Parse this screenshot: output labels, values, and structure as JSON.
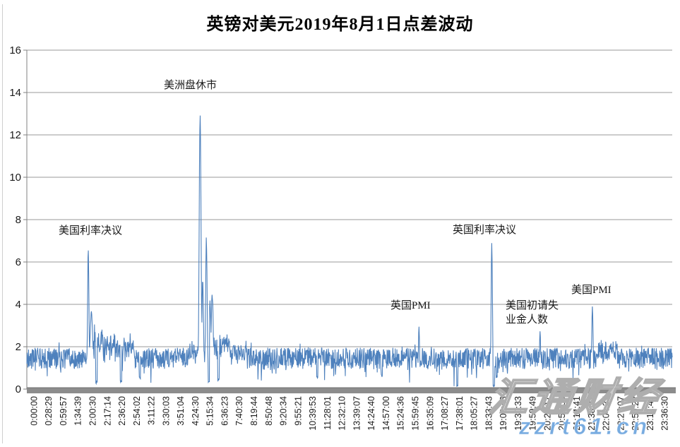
{
  "chart": {
    "title": "英镑对美元2019年8月1日点差波动"
  },
  "watermark": {
    "site_name": "汇通财经",
    "url": "zzrt61.cn",
    "url_color": "#77abe0"
  },
  "chart_data": {
    "type": "line",
    "title": "英镑对美元2019年8月1日点差波动",
    "xlabel": "",
    "ylabel": "",
    "ylim": [
      0,
      16
    ],
    "yticks": [
      0,
      2,
      4,
      6,
      8,
      10,
      12,
      14,
      16
    ],
    "grid": "horizontal",
    "legend": "none",
    "line_color": "#4E81BD",
    "gridline_color": "#999999",
    "axis_color": "#808080",
    "axis_bar_color": "#8c8c8c",
    "x_tick_labels": [
      "0:00:00",
      "0:28:29",
      "0:59:57",
      "1:34:39",
      "2:00:30",
      "2:17:14",
      "2:36:20",
      "2:54:02",
      "3:11:22",
      "3:30:03",
      "3:51:04",
      "4:24:30",
      "5:15:34",
      "6:36:23",
      "7:40:30",
      "8:19:44",
      "8:50:48",
      "9:20:34",
      "9:55:21",
      "10:39:53",
      "11:28:01",
      "12:32:10",
      "13:39:07",
      "14:24:40",
      "14:57:00",
      "15:24:36",
      "15:59:45",
      "16:35:09",
      "17:08:27",
      "17:38:01",
      "18:05:27",
      "18:33:43",
      "19:02:43",
      "19:30:33",
      "19:59:49",
      "20:24:17",
      "20:51:06",
      "21:14:41",
      "21:38:32",
      "22:04:37",
      "22:27:07",
      "22:50:22",
      "23:12:45",
      "23:36:30"
    ],
    "baseline": {
      "mean": 1.45,
      "noise_halfrange": 0.5,
      "dip_chance": 0.07,
      "dip_extra": 0.85,
      "up_chance": 0.04,
      "up_extra": 0.35
    },
    "spikes": [
      {
        "frac": 0.0952,
        "peak": 6.8,
        "sigma": 1.0
      },
      {
        "frac": 0.1,
        "peak": 3.7,
        "sigma": 2.2
      },
      {
        "frac": 0.2685,
        "peak": 13.6,
        "sigma": 1.3
      },
      {
        "frac": 0.2725,
        "peak": 5.2,
        "sigma": 1.2
      },
      {
        "frac": 0.2782,
        "peak": 7.4,
        "sigma": 1.1
      },
      {
        "frac": 0.2838,
        "peak": 4.35,
        "sigma": 1.4
      },
      {
        "frac": 0.2872,
        "peak": 4.6,
        "sigma": 1.6
      },
      {
        "frac": 0.6076,
        "peak": 3.1,
        "sigma": 0.9
      },
      {
        "frac": 0.7204,
        "peak": 6.9,
        "sigma": 1.0
      },
      {
        "frac": 0.7952,
        "peak": 2.9,
        "sigma": 0.9
      },
      {
        "frac": 0.8763,
        "peak": 4.0,
        "sigma": 1.0
      }
    ],
    "dips": [
      {
        "frac": 0.108,
        "value": 0.25
      },
      {
        "frac": 0.146,
        "value": 0.3
      },
      {
        "frac": 0.175,
        "value": 0.45
      },
      {
        "frac": 0.282,
        "value": 0.3
      },
      {
        "frac": 0.297,
        "value": 0.35
      },
      {
        "frac": 0.45,
        "value": 0.5
      },
      {
        "frac": 0.55,
        "value": 0.55
      },
      {
        "frac": 0.667,
        "value": 0.06
      },
      {
        "frac": 0.7235,
        "value": 0.08
      },
      {
        "frac": 0.728,
        "value": 0.5
      }
    ],
    "humps": [
      {
        "from": 0.097,
        "to": 0.118,
        "add": 0.9
      },
      {
        "from": 0.118,
        "to": 0.165,
        "add": 0.55
      },
      {
        "from": 0.25,
        "to": 0.268,
        "add": 0.35
      },
      {
        "from": 0.288,
        "to": 0.315,
        "add": 0.6
      },
      {
        "from": 0.315,
        "to": 0.34,
        "add": 0.25
      },
      {
        "from": 0.885,
        "to": 0.915,
        "add": 0.35
      }
    ],
    "annotations": [
      {
        "text": "美国利率决议",
        "time": "2:00:30",
        "peak": 6.8
      },
      {
        "text": "美洲盘休市",
        "time": "4:24:30",
        "peak": 13.6
      },
      {
        "text": "英国PMI",
        "time": "16:35:09",
        "peak": 3.1
      },
      {
        "text": "英国利率决议",
        "time": "19:02:43",
        "peak": 6.9
      },
      {
        "text": "美国初请失业金人数",
        "time": "20:24:17",
        "peak": 2.9
      },
      {
        "text": "美国PMI",
        "time": "22:04:37",
        "peak": 4.0
      }
    ]
  }
}
